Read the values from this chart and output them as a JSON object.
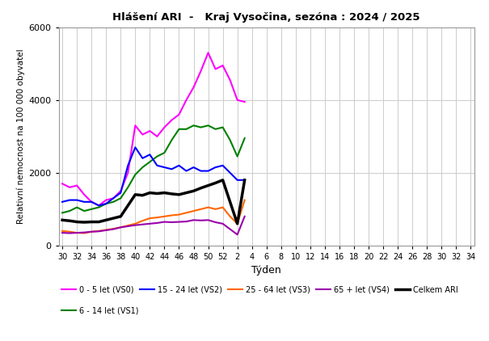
{
  "title": "Hlášení ARI  -   Kraj Vysočina, sezóna : 2024 / 2025",
  "xlabel": "Týden",
  "ylabel": "Relativní nemocnost na 100 000 obyvatel",
  "ylim": [
    0,
    6000
  ],
  "yticks": [
    0,
    2000,
    4000,
    6000
  ],
  "background_color": "#ffffff",
  "grid_color": "#cccccc",
  "series": {
    "VS0": {
      "label": "0 - 5 let (VS0)",
      "color": "#ff00ff",
      "lw": 1.5,
      "values": [
        1700,
        1600,
        1650,
        1400,
        1200,
        1100,
        1250,
        1300,
        1500,
        2000,
        3300,
        3050,
        3150,
        3000,
        3250,
        3450,
        3600,
        4000,
        4350,
        4800,
        5300,
        4850,
        4950,
        4550,
        4000,
        3950,
        null,
        null,
        null,
        null,
        null,
        null,
        null,
        null,
        null,
        null,
        null,
        null,
        null,
        null,
        null,
        null,
        null,
        null,
        null,
        null
      ]
    },
    "VS1": {
      "label": "6 - 14 let (VS1)",
      "color": "#008000",
      "lw": 1.5,
      "values": [
        900,
        950,
        1050,
        950,
        1000,
        1050,
        1150,
        1200,
        1300,
        1600,
        1950,
        2150,
        2300,
        2450,
        2550,
        2900,
        3200,
        3200,
        3300,
        3250,
        3300,
        3200,
        3250,
        2900,
        2450,
        2950,
        null,
        null,
        null,
        null,
        null,
        null,
        null,
        null,
        null,
        null,
        null,
        null,
        null,
        null,
        null,
        null,
        null,
        null,
        null,
        null
      ]
    },
    "VS2": {
      "label": "15 - 24 let (VS2)",
      "color": "#0000ff",
      "lw": 1.5,
      "values": [
        1200,
        1250,
        1250,
        1200,
        1200,
        1100,
        1150,
        1300,
        1450,
        2200,
        2700,
        2400,
        2500,
        2200,
        2150,
        2100,
        2200,
        2050,
        2150,
        2050,
        2050,
        2150,
        2200,
        2000,
        1800,
        1800,
        null,
        null,
        null,
        null,
        null,
        null,
        null,
        null,
        null,
        null,
        null,
        null,
        null,
        null,
        null,
        null,
        null,
        null,
        null,
        null
      ]
    },
    "VS3": {
      "label": "25 - 64 let (VS3)",
      "color": "#ff6600",
      "lw": 1.5,
      "values": [
        400,
        380,
        350,
        340,
        380,
        400,
        430,
        460,
        500,
        550,
        600,
        680,
        750,
        770,
        800,
        830,
        850,
        900,
        950,
        1000,
        1050,
        1000,
        1050,
        800,
        600,
        1250,
        null,
        null,
        null,
        null,
        null,
        null,
        null,
        null,
        null,
        null,
        null,
        null,
        null,
        null,
        null,
        null,
        null,
        null,
        null,
        null
      ]
    },
    "VS4": {
      "label": "65 + let (VS4)",
      "color": "#9900aa",
      "lw": 1.5,
      "values": [
        350,
        340,
        350,
        360,
        380,
        390,
        420,
        450,
        500,
        530,
        560,
        580,
        600,
        620,
        650,
        640,
        650,
        660,
        700,
        690,
        700,
        640,
        600,
        450,
        300,
        800,
        null,
        null,
        null,
        null,
        null,
        null,
        null,
        null,
        null,
        null,
        null,
        null,
        null,
        null,
        null,
        null,
        null,
        null,
        null,
        null
      ]
    },
    "ARI": {
      "label": "Celkem ARI",
      "color": "#000000",
      "lw": 2.5,
      "values": [
        700,
        680,
        650,
        640,
        650,
        650,
        700,
        750,
        800,
        1100,
        1400,
        1380,
        1450,
        1430,
        1450,
        1420,
        1400,
        1450,
        1500,
        1580,
        1650,
        1720,
        1800,
        1200,
        600,
        1800,
        null,
        null,
        null,
        null,
        null,
        null,
        null,
        null,
        null,
        null,
        null,
        null,
        null,
        null,
        null,
        null,
        null,
        null,
        null,
        null
      ]
    }
  },
  "week_start": 30,
  "n_weeks_season1": 26,
  "n_weeks_season2": 20,
  "xtick_week_labels": [
    "30",
    "32",
    "34",
    "36",
    "38",
    "40",
    "42",
    "44",
    "46",
    "48",
    "50",
    "52",
    "2",
    "4",
    "6",
    "8",
    "10",
    "12",
    "14",
    "16",
    "18",
    "20",
    "22",
    "24",
    "26",
    "28",
    "30",
    "32",
    "34"
  ]
}
